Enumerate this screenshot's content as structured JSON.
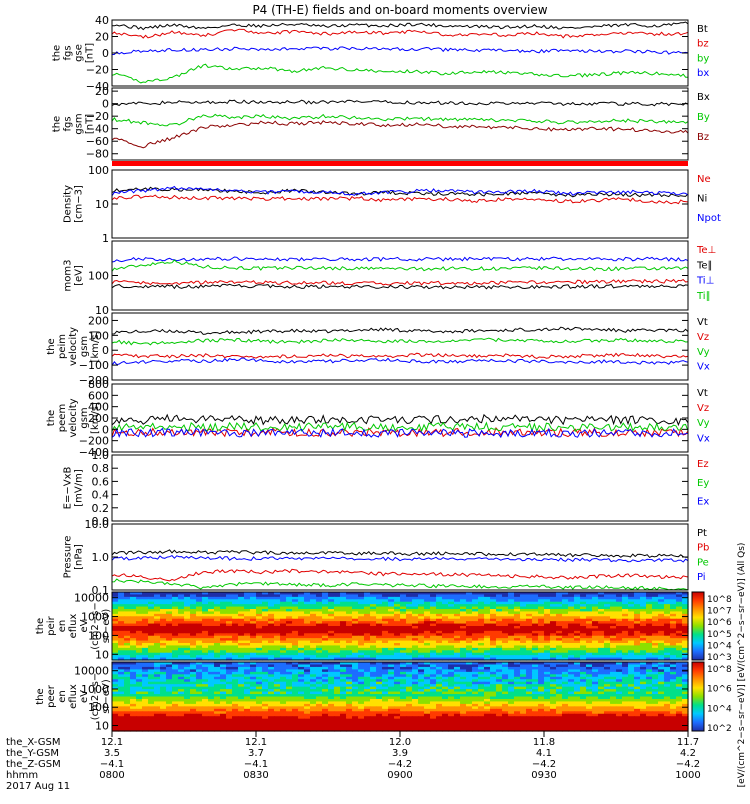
{
  "title": "P4 (TH-E) fields and on-board moments overview",
  "chart_data": [
    {
      "type": "line",
      "ylabel": [
        "the",
        "fgs",
        "gse",
        "[nT]"
      ],
      "ylim": [
        -40,
        40
      ],
      "yticks": [
        "40",
        "20",
        "0",
        "−20",
        "−40"
      ],
      "legend": [
        {
          "name": "Bt",
          "color": "#000000"
        },
        {
          "name": "bz",
          "color": "#e00000"
        },
        {
          "name": "by",
          "color": "#00c800"
        },
        {
          "name": "bx",
          "color": "#0000ff"
        }
      ],
      "series": [
        {
          "name": "Bt",
          "values": [
            35,
            30,
            34,
            30,
            34,
            33,
            35,
            32,
            34,
            33,
            35,
            33,
            32,
            31,
            33,
            30,
            32,
            34,
            33,
            36
          ]
        },
        {
          "name": "bz",
          "values": [
            25,
            19,
            25,
            21,
            28,
            24,
            26,
            23,
            25,
            24,
            26,
            22,
            23,
            22,
            24,
            20,
            22,
            24,
            23,
            24
          ]
        },
        {
          "name": "by",
          "values": [
            -25,
            -35,
            -30,
            -15,
            -20,
            -18,
            -22,
            -18,
            -20,
            -23,
            -22,
            -25,
            -22,
            -24,
            -26,
            -28,
            -26,
            -24,
            -25,
            -28
          ]
        },
        {
          "name": "bx",
          "values": [
            0,
            2,
            4,
            4,
            5,
            4,
            6,
            5,
            6,
            4,
            5,
            4,
            3,
            3,
            2,
            3,
            2,
            2,
            1,
            0
          ]
        }
      ]
    },
    {
      "type": "line",
      "ylabel": [
        "the",
        "fgs",
        "gsm",
        "[nT]"
      ],
      "ylim": [
        -90,
        25
      ],
      "yticks": [
        "20",
        "0",
        "−20",
        "−40",
        "−60",
        "−80"
      ],
      "legend": [
        {
          "name": "Bx",
          "color": "#000000"
        },
        {
          "name": "By",
          "color": "#00c800"
        },
        {
          "name": "Bz",
          "color": "#8b0000"
        }
      ],
      "series": [
        {
          "name": "Bx",
          "values": [
            0,
            0,
            2,
            2,
            3,
            2,
            3,
            2,
            3,
            2,
            2,
            1,
            1,
            0,
            1,
            0,
            0,
            0,
            -1,
            0
          ]
        },
        {
          "name": "By",
          "values": [
            -25,
            -30,
            -35,
            -18,
            -22,
            -20,
            -24,
            -20,
            -22,
            -25,
            -24,
            -25,
            -26,
            -27,
            -28,
            -30,
            -28,
            -27,
            -29,
            -30
          ]
        },
        {
          "name": "Bz",
          "values": [
            -55,
            -68,
            -55,
            -38,
            -35,
            -30,
            -32,
            -30,
            -32,
            -35,
            -33,
            -36,
            -37,
            -38,
            -40,
            -42,
            -40,
            -41,
            -44,
            -45
          ]
        }
      ]
    },
    {
      "type": "line",
      "ylabel": [
        "Density",
        "[cm−3]"
      ],
      "scale": "log",
      "ylim": [
        1,
        100
      ],
      "yticks": [
        "100",
        "10",
        "1"
      ],
      "legend": [
        {
          "name": "Ne",
          "color": "#e00000"
        },
        {
          "name": "Ni",
          "color": "#000000"
        },
        {
          "name": "Npot",
          "color": "#0000ff"
        }
      ],
      "series": [
        {
          "name": "Ne",
          "values": [
            15,
            17,
            16,
            15,
            15,
            14,
            15,
            14,
            15,
            13,
            14,
            14,
            12,
            14,
            13,
            12,
            13,
            14,
            11,
            12
          ]
        },
        {
          "name": "Ni",
          "values": [
            25,
            28,
            27,
            26,
            24,
            22,
            25,
            22,
            20,
            22,
            21,
            20,
            19,
            20,
            21,
            18,
            20,
            19,
            18,
            19
          ]
        },
        {
          "name": "Npot",
          "values": [
            20,
            25,
            30,
            28,
            24,
            22,
            24,
            22,
            20,
            22,
            24,
            26,
            22,
            23,
            24,
            20,
            22,
            23,
            21,
            20
          ]
        }
      ]
    },
    {
      "type": "line",
      "ylabel": [
        "mom3",
        "[eV]"
      ],
      "scale": "log",
      "ylim": [
        10,
        1000
      ],
      "yticks": [
        "100",
        "10"
      ],
      "legend": [
        {
          "name": "Te⊥",
          "color": "#e00000"
        },
        {
          "name": "Te∥",
          "color": "#000000"
        },
        {
          "name": "Ti⊥",
          "color": "#0000ff"
        },
        {
          "name": "Ti∥",
          "color": "#00c800"
        }
      ],
      "series": [
        {
          "name": "Te⊥",
          "values": [
            65,
            62,
            60,
            63,
            64,
            63,
            62,
            62,
            61,
            60,
            60,
            61,
            60,
            62,
            64,
            65,
            66,
            68,
            68,
            70
          ]
        },
        {
          "name": "Te∥",
          "values": [
            50,
            50,
            48,
            49,
            50,
            49,
            48,
            48,
            47,
            47,
            47,
            46,
            46,
            47,
            48,
            48,
            49,
            50,
            50,
            50
          ]
        },
        {
          "name": "Ti⊥",
          "values": [
            280,
            300,
            290,
            300,
            310,
            300,
            300,
            290,
            300,
            300,
            295,
            300,
            300,
            300,
            305,
            310,
            300,
            300,
            300,
            300
          ]
        },
        {
          "name": "Ti∥",
          "values": [
            150,
            200,
            260,
            180,
            170,
            160,
            170,
            165,
            160,
            160,
            155,
            160,
            160,
            158,
            165,
            160,
            155,
            160,
            158,
            160
          ]
        }
      ]
    },
    {
      "type": "line",
      "ylabel": [
        "the",
        "peim",
        "velocity",
        "gsm",
        "[km/s]"
      ],
      "ylim": [
        -200,
        250
      ],
      "yticks": [
        "200",
        "100",
        "0",
        "−100",
        "−200"
      ],
      "legend": [
        {
          "name": "Vt",
          "color": "#000000"
        },
        {
          "name": "Vz",
          "color": "#e00000"
        },
        {
          "name": "Vy",
          "color": "#00c800"
        },
        {
          "name": "Vx",
          "color": "#0000ff"
        }
      ],
      "series": [
        {
          "name": "Vt",
          "values": [
            120,
            125,
            130,
            115,
            120,
            125,
            130,
            125,
            135,
            140,
            130,
            125,
            130,
            135,
            140,
            145,
            140,
            130,
            135,
            130
          ]
        },
        {
          "name": "Vz",
          "values": [
            -30,
            -40,
            -40,
            -35,
            -40,
            -45,
            -40,
            -35,
            -40,
            -45,
            -30,
            -35,
            -40,
            -35,
            -45,
            -40,
            -35,
            -30,
            -40,
            -45
          ]
        },
        {
          "name": "Vy",
          "values": [
            60,
            40,
            55,
            65,
            70,
            60,
            55,
            65,
            70,
            60,
            60,
            65,
            70,
            70,
            65,
            60,
            65,
            70,
            60,
            65
          ]
        },
        {
          "name": "Vx",
          "values": [
            -90,
            -80,
            -70,
            -75,
            -60,
            -70,
            -80,
            -75,
            -70,
            -65,
            -75,
            -80,
            -70,
            -70,
            -75,
            -80,
            -75,
            -80,
            -85,
            -80
          ]
        }
      ]
    },
    {
      "type": "line",
      "ylabel": [
        "the",
        "peem",
        "velocity",
        "gsm",
        "[km/s]"
      ],
      "ylim": [
        -400,
        800
      ],
      "yticks": [
        "800",
        "600",
        "400",
        "200",
        "0",
        "−200",
        "−400"
      ],
      "legend": [
        {
          "name": "Vt",
          "color": "#000000"
        },
        {
          "name": "Vz",
          "color": "#e00000"
        },
        {
          "name": "Vy",
          "color": "#00c800"
        },
        {
          "name": "Vx",
          "color": "#0000ff"
        }
      ],
      "series": [
        {
          "name": "Vt",
          "values": [
            150,
            160,
            200,
            170,
            180,
            160,
            170,
            180,
            160,
            170,
            165,
            175,
            180,
            200,
            170,
            160,
            165,
            170,
            160,
            150
          ]
        },
        {
          "name": "Vz",
          "values": [
            -60,
            -50,
            -40,
            -55,
            -60,
            -50,
            -55,
            -60,
            -50,
            -55,
            -55,
            -60,
            -50,
            -45,
            -55,
            -60,
            -50,
            -55,
            -60,
            -55
          ]
        },
        {
          "name": "Vy",
          "values": [
            40,
            30,
            50,
            40,
            45,
            40,
            35,
            45,
            50,
            40,
            40,
            45,
            50,
            45,
            40,
            35,
            40,
            45,
            40,
            35
          ]
        },
        {
          "name": "Vx",
          "values": [
            -70,
            -60,
            -50,
            -60,
            -65,
            -60,
            -55,
            -65,
            -60,
            -70,
            -65,
            -60,
            -70,
            -65,
            -60,
            -70,
            -65,
            -60,
            -70,
            -65
          ]
        }
      ]
    },
    {
      "type": "line",
      "ylabel": [
        "E=−VxB",
        "[mV/m]"
      ],
      "ylim": [
        0,
        1
      ],
      "yticks": [
        "1.0",
        "0.8",
        "0.6",
        "0.4",
        "0.2",
        "0.0"
      ],
      "legend": [
        {
          "name": "Ez",
          "color": "#e00000"
        },
        {
          "name": "Ey",
          "color": "#00c800"
        },
        {
          "name": "Ex",
          "color": "#0000ff"
        }
      ],
      "series": []
    },
    {
      "type": "line",
      "ylabel": [
        "Pressure",
        "[nPa]"
      ],
      "scale": "log",
      "ylim": [
        0.1,
        10
      ],
      "yticks": [
        "10.0",
        "1.0",
        "0.1"
      ],
      "legend": [
        {
          "name": "Pt",
          "color": "#000000"
        },
        {
          "name": "Pb",
          "color": "#e00000"
        },
        {
          "name": "Pe",
          "color": "#00c800"
        },
        {
          "name": "Pi",
          "color": "#0000ff"
        }
      ],
      "series": [
        {
          "name": "Pt",
          "values": [
            1.3,
            1.4,
            1.5,
            1.4,
            1.4,
            1.35,
            1.35,
            1.3,
            1.3,
            1.3,
            1.25,
            1.3,
            1.25,
            1.2,
            1.2,
            1.15,
            1.15,
            1.1,
            1.1,
            1.05
          ]
        },
        {
          "name": "Pb",
          "values": [
            0.3,
            0.25,
            0.2,
            0.35,
            0.38,
            0.35,
            0.38,
            0.36,
            0.35,
            0.3,
            0.33,
            0.3,
            0.28,
            0.27,
            0.26,
            0.24,
            0.26,
            0.28,
            0.25,
            0.24
          ]
        },
        {
          "name": "Pe",
          "values": [
            0.2,
            0.18,
            0.15,
            0.12,
            0.15,
            0.16,
            0.15,
            0.14,
            0.15,
            0.14,
            0.14,
            0.13,
            0.13,
            0.12,
            0.13,
            0.12,
            0.12,
            0.12,
            0.11,
            0.11
          ]
        },
        {
          "name": "Pi",
          "values": [
            0.9,
            0.95,
            1.0,
            0.95,
            0.9,
            0.9,
            0.92,
            0.9,
            0.88,
            0.88,
            0.87,
            0.88,
            0.86,
            0.85,
            0.85,
            0.83,
            0.82,
            0.8,
            0.8,
            0.78
          ]
        }
      ]
    },
    {
      "type": "heatmap",
      "ylabel": [
        "the",
        "peir",
        "en",
        "eflux",
        "eV",
        "(cm2−s−",
        "sr−eV)"
      ],
      "scale": "log",
      "ylim": [
        5,
        20000
      ],
      "yticks": [
        "10000",
        "1000",
        "100",
        "10"
      ],
      "colorbar": {
        "ticks": [
          "10^8",
          "10^7",
          "10^6",
          "10^5",
          "10^4",
          "10^3"
        ]
      }
    },
    {
      "type": "heatmap",
      "ylabel": [
        "the",
        "peer",
        "en",
        "eflux",
        "eV",
        "(cm2−s−",
        "sr−eV)"
      ],
      "scale": "log",
      "ylim": [
        5,
        30000
      ],
      "yticks": [
        "10000",
        "1000",
        "100",
        "10"
      ],
      "colorbar": {
        "ticks": [
          "10^8",
          "10^6",
          "10^4",
          "10^2"
        ]
      }
    }
  ],
  "xaxis": {
    "tick_labels": [
      "0800",
      "0830",
      "0900",
      "0930",
      "1000"
    ],
    "ephemeris": [
      {
        "name": "the_X-GSM",
        "values": [
          "12.1",
          "12.1",
          "12.0",
          "11.8",
          "11.7"
        ]
      },
      {
        "name": "the_Y-GSM",
        "values": [
          "3.5",
          "3.7",
          "3.9",
          "4.1",
          "4.2"
        ]
      },
      {
        "name": "the_Z-GSM",
        "values": [
          "−4.1",
          "−4.1",
          "−4.2",
          "−4.2",
          "−4.2"
        ]
      },
      {
        "name": "hhmm",
        "values": [
          "0800",
          "0830",
          "0900",
          "0930",
          "1000"
        ]
      }
    ],
    "date": "2017 Aug 11"
  },
  "colorbar_label": "[eV/(cm^2−s−sr−eV)] [eV/(cm^2−s−sr−eV)] (All Qs)"
}
